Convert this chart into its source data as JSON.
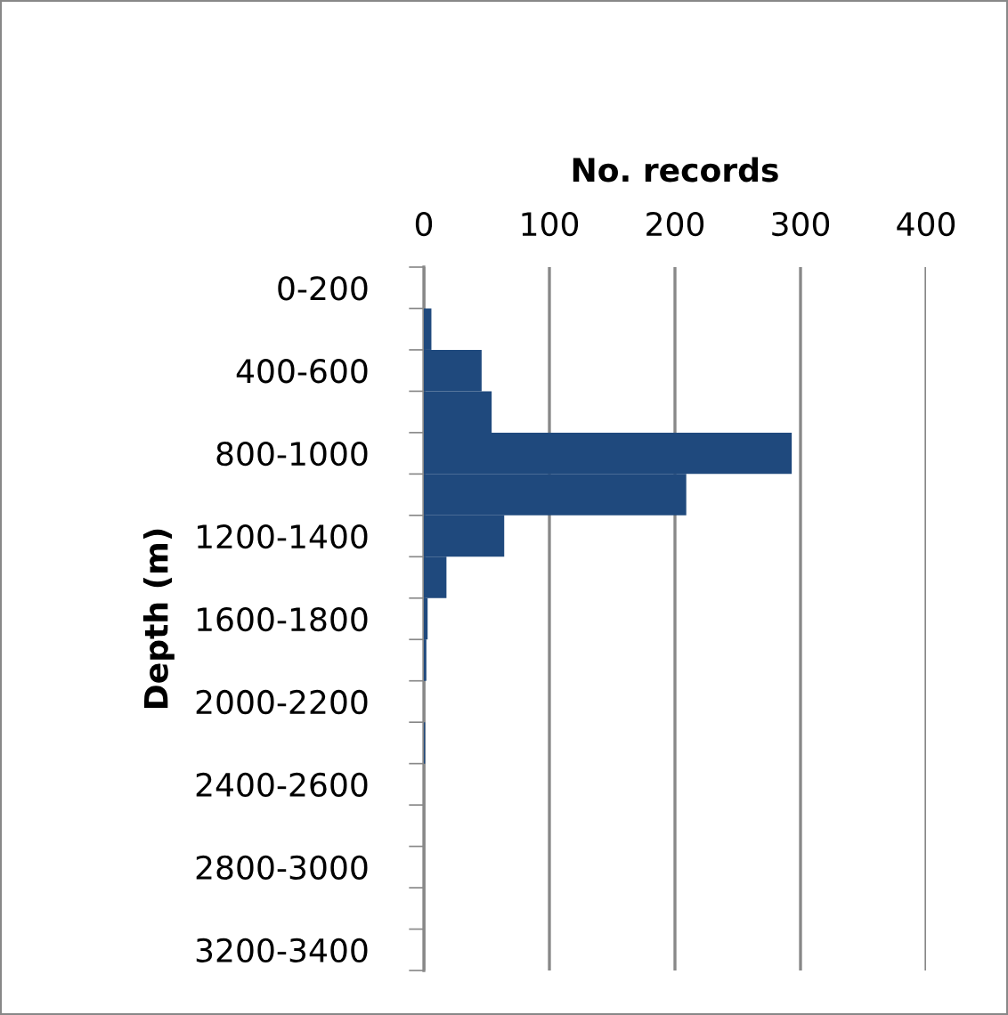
{
  "chart_data": {
    "type": "bar",
    "orientation": "horizontal",
    "xlabel": "No. records",
    "ylabel": "Depth (m)",
    "categories": [
      "0-200",
      null,
      "400-600",
      null,
      "800-1000",
      null,
      "1200-1400",
      null,
      "1600-1800",
      null,
      "2000-2200",
      null,
      "2400-2600",
      null,
      "2800-3000",
      null,
      "3200-3400"
    ],
    "values": [
      0,
      6,
      46,
      54,
      293,
      209,
      64,
      18,
      3,
      2,
      0,
      1,
      0,
      0,
      0,
      0,
      0
    ],
    "color": "#1f497d",
    "xlim": [
      0,
      400
    ],
    "xticks": [
      0,
      100,
      200,
      300,
      400
    ],
    "grid": "x",
    "legend": false
  }
}
